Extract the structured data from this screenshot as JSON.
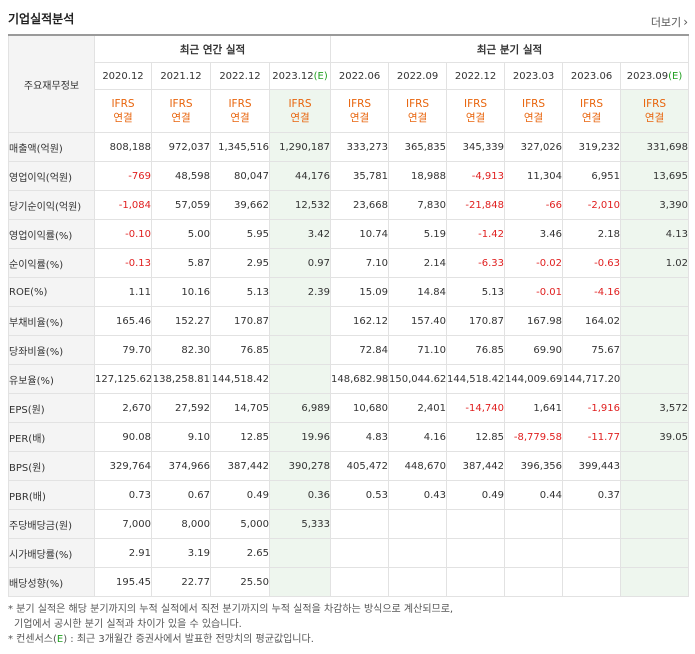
{
  "header": {
    "title": "기업실적분석",
    "more_label": "더보기"
  },
  "table": {
    "corner_label": "주요재무정보",
    "annual_group": "최근 연간 실적",
    "quarter_group": "최근 분기 실적",
    "annual_periods": [
      {
        "prefix": "2020.12",
        "estimate": ""
      },
      {
        "prefix": "2021.12",
        "estimate": ""
      },
      {
        "prefix": "2022.12",
        "estimate": ""
      },
      {
        "prefix": "2023.12",
        "estimate": "(E)"
      }
    ],
    "quarter_periods": [
      {
        "prefix": "2022.06",
        "estimate": ""
      },
      {
        "prefix": "2022.09",
        "estimate": ""
      },
      {
        "prefix": "2022.12",
        "estimate": ""
      },
      {
        "prefix": "2023.03",
        "estimate": ""
      },
      {
        "prefix": "2023.06",
        "estimate": ""
      },
      {
        "prefix": "2023.09",
        "estimate": "(E)"
      }
    ],
    "ifrs_line1": "IFRS",
    "ifrs_line2": "연결",
    "rows": [
      {
        "label": "매출액(억원)",
        "values": [
          "808,188",
          "972,037",
          "1,345,516",
          "1,290,187",
          "333,273",
          "365,835",
          "345,339",
          "327,026",
          "319,232",
          "331,698"
        ]
      },
      {
        "label": "영업이익(억원)",
        "values": [
          "-769",
          "48,598",
          "80,047",
          "44,176",
          "35,781",
          "18,988",
          "-4,913",
          "11,304",
          "6,951",
          "13,695"
        ]
      },
      {
        "label": "당기순이익(억원)",
        "values": [
          "-1,084",
          "57,059",
          "39,662",
          "12,532",
          "23,668",
          "7,830",
          "-21,848",
          "-66",
          "-2,010",
          "3,390"
        ]
      },
      {
        "label": "영업이익률(%)",
        "values": [
          "-0.10",
          "5.00",
          "5.95",
          "3.42",
          "10.74",
          "5.19",
          "-1.42",
          "3.46",
          "2.18",
          "4.13"
        ]
      },
      {
        "label": "순이익률(%)",
        "values": [
          "-0.13",
          "5.87",
          "2.95",
          "0.97",
          "7.10",
          "2.14",
          "-6.33",
          "-0.02",
          "-0.63",
          "1.02"
        ]
      },
      {
        "label": "ROE(%)",
        "values": [
          "1.11",
          "10.16",
          "5.13",
          "2.39",
          "15.09",
          "14.84",
          "5.13",
          "-0.01",
          "-4.16",
          ""
        ]
      },
      {
        "label": "부채비율(%)",
        "values": [
          "165.46",
          "152.27",
          "170.87",
          "",
          "162.12",
          "157.40",
          "170.87",
          "167.98",
          "164.02",
          ""
        ]
      },
      {
        "label": "당좌비율(%)",
        "values": [
          "79.70",
          "82.30",
          "76.85",
          "",
          "72.84",
          "71.10",
          "76.85",
          "69.90",
          "75.67",
          ""
        ]
      },
      {
        "label": "유보율(%)",
        "values": [
          "127,125.62",
          "138,258.81",
          "144,518.42",
          "",
          "148,682.98",
          "150,044.62",
          "144,518.42",
          "144,009.69",
          "144,717.20",
          ""
        ]
      },
      {
        "label": "EPS(원)",
        "values": [
          "2,670",
          "27,592",
          "14,705",
          "6,989",
          "10,680",
          "2,401",
          "-14,740",
          "1,641",
          "-1,916",
          "3,572"
        ]
      },
      {
        "label": "PER(배)",
        "values": [
          "90.08",
          "9.10",
          "12.85",
          "19.96",
          "4.83",
          "4.16",
          "12.85",
          "-8,779.58",
          "-11.77",
          "39.05"
        ]
      },
      {
        "label": "BPS(원)",
        "values": [
          "329,764",
          "374,966",
          "387,442",
          "390,278",
          "405,472",
          "448,670",
          "387,442",
          "396,356",
          "399,443",
          ""
        ]
      },
      {
        "label": "PBR(배)",
        "values": [
          "0.73",
          "0.67",
          "0.49",
          "0.36",
          "0.53",
          "0.43",
          "0.49",
          "0.44",
          "0.37",
          ""
        ]
      },
      {
        "label": "주당배당금(원)",
        "values": [
          "7,000",
          "8,000",
          "5,000",
          "5,333",
          "",
          "",
          "",
          "",
          "",
          ""
        ]
      },
      {
        "label": "시가배당률(%)",
        "values": [
          "2.91",
          "3.19",
          "2.65",
          "",
          "",
          "",
          "",
          "",
          "",
          ""
        ]
      },
      {
        "label": "배당성향(%)",
        "values": [
          "195.45",
          "22.77",
          "25.50",
          "",
          "",
          "",
          "",
          "",
          "",
          ""
        ]
      }
    ]
  },
  "notes": {
    "line1": "* 분기 실적은 해당 분기까지의 누적 실적에서 직전 분기까지의 누적 실적을 차감하는 방식으로 계산되므로,",
    "line2": "기업에서 공시한 분기 실적과 차이가 있을 수 있습니다.",
    "line3_prefix": "* 컨센서스(",
    "line3_e": "E",
    "line3_suffix": ") : 최근 3개월간 증권사에서 발표한 전망치의 평균값입니다."
  },
  "colors": {
    "negative": "#e02020",
    "ifrs": "#e8640c",
    "estimate_bg": "#eef6ee",
    "estimate_mark": "#22a022"
  }
}
